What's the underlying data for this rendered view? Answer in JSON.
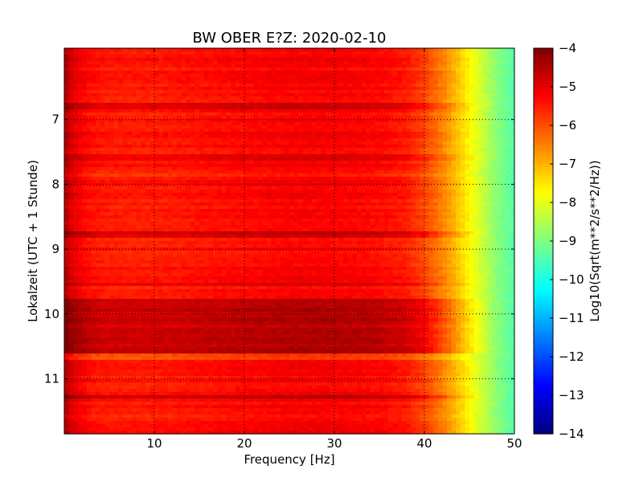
{
  "chart_data": {
    "type": "heatmap",
    "title": "BW OBER E?Z: 2020-02-10",
    "xlabel": "Frequency [Hz]",
    "ylabel": "Lokalzeit (UTC + 1 Stunde)",
    "xlim": [
      0,
      50
    ],
    "ylim": [
      5.9,
      11.85
    ],
    "y_inverted": true,
    "x_ticks": [
      10,
      20,
      30,
      40,
      50
    ],
    "y_ticks": [
      7,
      8,
      9,
      10,
      11
    ],
    "grid": true,
    "colormap": "jet",
    "colorbar": {
      "label": "Log10(Sqrt(m**2/s**2/Hz))",
      "range": [
        -14,
        -4
      ],
      "ticks": [
        -4,
        -5,
        -6,
        -7,
        -8,
        -9,
        -10,
        -11,
        -12,
        -13,
        -14
      ]
    },
    "spectrum_profile": {
      "frequency_hz": [
        0,
        1,
        3,
        5,
        10,
        15,
        20,
        25,
        30,
        35,
        38,
        40,
        42,
        44,
        46,
        48,
        50
      ],
      "log10_amplitude": [
        -4.5,
        -5.0,
        -5.4,
        -5.5,
        -5.5,
        -5.4,
        -5.3,
        -5.2,
        -5.2,
        -5.3,
        -5.5,
        -5.9,
        -6.5,
        -7.3,
        -8.1,
        -8.9,
        -9.4
      ]
    },
    "strong_time_bands": [
      {
        "from": 9.75,
        "to": 10.6,
        "delta": 0.7
      },
      {
        "from": 8.75,
        "to": 8.85,
        "delta": 0.5
      },
      {
        "from": 11.25,
        "to": 11.32,
        "delta": 0.8
      },
      {
        "from": 7.55,
        "to": 7.65,
        "delta": 0.4
      },
      {
        "from": 6.75,
        "to": 6.82,
        "delta": 0.4
      },
      {
        "from": 9.5,
        "to": 9.56,
        "delta": 0.3
      }
    ],
    "weak_time_bands": [
      {
        "from": 10.6,
        "to": 10.72,
        "delta": -0.5
      },
      {
        "from": 7.8,
        "to": 7.88,
        "delta": -0.2
      }
    ]
  }
}
